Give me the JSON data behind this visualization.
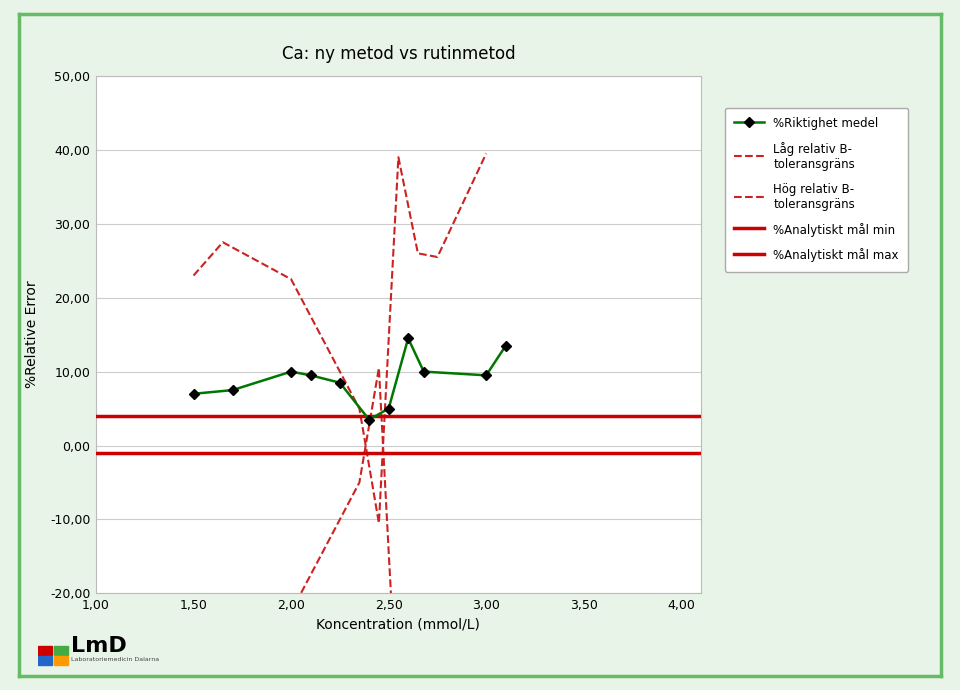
{
  "title": "Ca: ny metod vs rutinmetod",
  "xlabel": "Koncentration (mmol/L)",
  "ylabel": "%Relative Error",
  "xlim": [
    1.0,
    4.1
  ],
  "ylim": [
    -20.0,
    50.0
  ],
  "xticks": [
    1.0,
    1.5,
    2.0,
    2.5,
    3.0,
    3.5,
    4.0
  ],
  "yticks": [
    -20.0,
    -10.0,
    0.0,
    10.0,
    20.0,
    30.0,
    40.0,
    50.0
  ],
  "green_x": [
    1.5,
    1.7,
    2.0,
    2.1,
    2.25,
    2.4,
    2.5,
    2.6,
    2.68,
    3.0,
    3.1
  ],
  "green_y": [
    7.0,
    7.5,
    10.0,
    9.5,
    8.5,
    3.5,
    5.0,
    14.5,
    10.0,
    9.5,
    13.5
  ],
  "lag_x": [
    1.5,
    1.65,
    2.0,
    2.35,
    2.45,
    2.55,
    2.65,
    2.75,
    3.0
  ],
  "lag_y": [
    23.0,
    27.5,
    22.5,
    5.0,
    -10.5,
    39.0,
    26.0,
    25.5,
    39.5
  ],
  "hog_x": [
    1.5,
    1.65,
    2.0,
    2.35,
    2.45,
    2.55,
    2.65,
    2.75,
    3.0
  ],
  "hog_y": [
    -23.0,
    -27.5,
    -22.5,
    -5.0,
    10.5,
    -39.0,
    -26.0,
    -25.5,
    -39.5
  ],
  "analytiskt_min": 4.0,
  "analytiskt_max": -1.0,
  "green_color": "#007700",
  "lag_color": "#cc2222",
  "hog_color": "#cc2222",
  "analytiskt_color": "#cc0000",
  "background_outer": "#e8f4e8",
  "background_chart": "#f5f5f5",
  "background_inner": "#ffffff",
  "outer_border_color": "#66bb66",
  "legend_label_green": "%Riktighet medel",
  "legend_label_lag": "Låg relativ B-\ntoleransgräns",
  "legend_label_hog": "Hög relativ B-\ntoleransgräns",
  "legend_label_min": "%Analytiskt mål min",
  "legend_label_max": "%Analytiskt mål max"
}
